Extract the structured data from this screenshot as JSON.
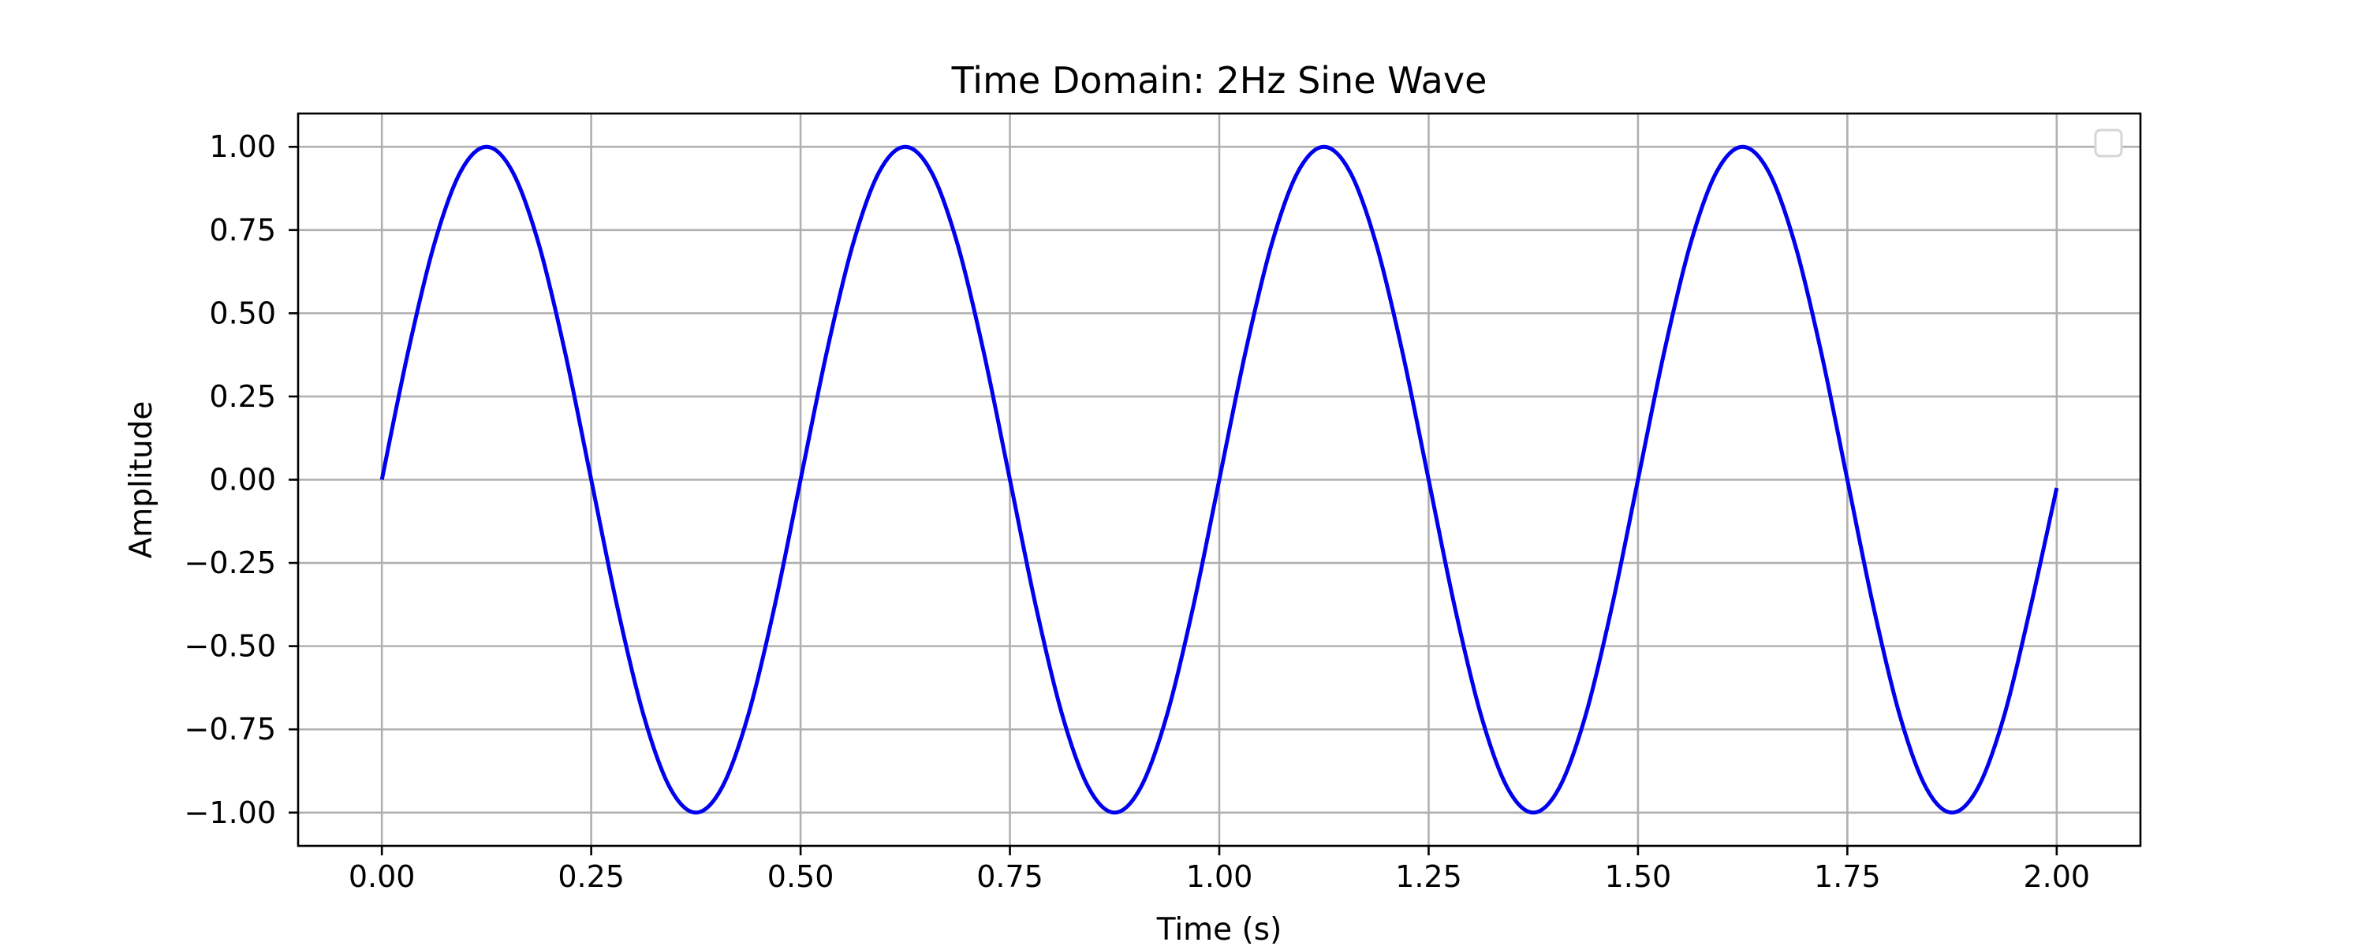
{
  "chart_data": {
    "type": "line",
    "title": "Time Domain: 2Hz Sine Wave",
    "xlabel": "Time (s)",
    "ylabel": "Amplitude",
    "xlim": [
      -0.1,
      2.1
    ],
    "ylim": [
      -1.1,
      1.1
    ],
    "x_ticks": [
      0.0,
      0.25,
      0.5,
      0.75,
      1.0,
      1.25,
      1.5,
      1.75,
      2.0
    ],
    "x_tick_labels": [
      "0.00",
      "0.25",
      "0.50",
      "0.75",
      "1.00",
      "1.25",
      "1.50",
      "1.75",
      "2.00"
    ],
    "y_ticks": [
      1.0,
      0.75,
      0.5,
      0.25,
      0.0,
      -0.25,
      -0.5,
      -0.75,
      -1.0
    ],
    "y_tick_labels": [
      "1.00",
      "0.75",
      "0.50",
      "0.25",
      "0.00",
      "−0.25",
      "−0.50",
      "−0.75",
      "−1.00"
    ],
    "grid": true,
    "legend": {
      "placement": "top-right",
      "entries": []
    },
    "series": [
      {
        "color": "#0000ee",
        "x": [
          0.0,
          0.03125,
          0.0625,
          0.09375,
          0.125,
          0.15625,
          0.1875,
          0.21875,
          0.25,
          0.28125,
          0.3125,
          0.34375,
          0.375,
          0.40625,
          0.4375,
          0.46875,
          0.5,
          0.53125,
          0.5625,
          0.59375,
          0.625,
          0.65625,
          0.6875,
          0.71875,
          0.75,
          0.78125,
          0.8125,
          0.84375,
          0.875,
          0.90625,
          0.9375,
          0.96875,
          1.0,
          1.03125,
          1.0625,
          1.09375,
          1.125,
          1.15625,
          1.1875,
          1.21875,
          1.25,
          1.28125,
          1.3125,
          1.34375,
          1.375,
          1.40625,
          1.4375,
          1.46875,
          1.5,
          1.53125,
          1.5625,
          1.59375,
          1.625,
          1.65625,
          1.6875,
          1.71875,
          1.75,
          1.78125,
          1.8125,
          1.84375,
          1.875,
          1.90625,
          1.9375,
          1.96875,
          2.0
        ],
        "y": [
          0.0,
          0.383,
          0.707,
          0.924,
          1.0,
          0.924,
          0.707,
          0.383,
          0.0,
          -0.383,
          -0.707,
          -0.924,
          -1.0,
          -0.924,
          -0.707,
          -0.383,
          0.0,
          0.383,
          0.707,
          0.924,
          1.0,
          0.924,
          0.707,
          0.383,
          0.0,
          -0.383,
          -0.707,
          -0.924,
          -1.0,
          -0.924,
          -0.707,
          -0.383,
          0.0,
          0.383,
          0.707,
          0.924,
          1.0,
          0.924,
          0.707,
          0.383,
          0.0,
          -0.383,
          -0.707,
          -0.924,
          -1.0,
          -0.924,
          -0.707,
          -0.383,
          0.0,
          0.383,
          0.707,
          0.924,
          1.0,
          0.924,
          0.707,
          0.383,
          0.0,
          -0.383,
          -0.707,
          -0.924,
          -1.0,
          -0.924,
          -0.707,
          -0.383,
          -0.025
        ]
      }
    ]
  }
}
